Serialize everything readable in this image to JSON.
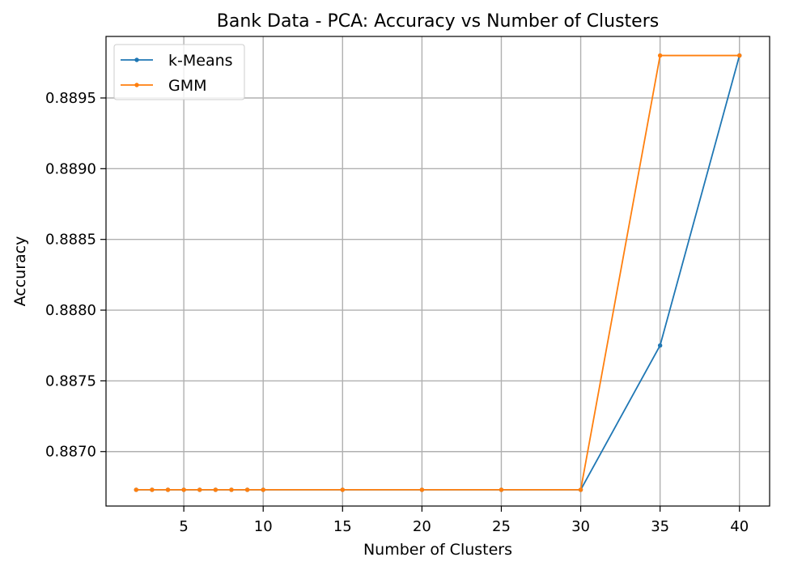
{
  "chart_data": {
    "type": "line",
    "title": "Bank Data - PCA: Accuracy vs Number of Clusters",
    "xlabel": "Number of Clusters",
    "ylabel": "Accuracy",
    "xlim": [
      0.1,
      41.9
    ],
    "ylim": [
      0.886615,
      0.889935
    ],
    "xticks": [
      5,
      10,
      15,
      20,
      25,
      30,
      35,
      40
    ],
    "xtick_labels": [
      "5",
      "10",
      "15",
      "20",
      "25",
      "30",
      "35",
      "40"
    ],
    "yticks": [
      0.887,
      0.8875,
      0.888,
      0.8885,
      0.889,
      0.8895
    ],
    "ytick_labels": [
      "0.8870",
      "0.8875",
      "0.8880",
      "0.8885",
      "0.8890",
      "0.8895"
    ],
    "grid": true,
    "legend_position": "top-left",
    "series": [
      {
        "name": "k-Means",
        "color": "#1f77b4",
        "x": [
          2,
          3,
          4,
          5,
          6,
          7,
          8,
          9,
          10,
          15,
          20,
          25,
          30,
          35,
          40
        ],
        "y": [
          0.88673,
          0.88673,
          0.88673,
          0.88673,
          0.88673,
          0.88673,
          0.88673,
          0.88673,
          0.88673,
          0.88673,
          0.88673,
          0.88673,
          0.88673,
          0.88775,
          0.8898
        ]
      },
      {
        "name": "GMM",
        "color": "#ff7f0e",
        "x": [
          2,
          3,
          4,
          5,
          6,
          7,
          8,
          9,
          10,
          15,
          20,
          25,
          30,
          35,
          40
        ],
        "y": [
          0.88673,
          0.88673,
          0.88673,
          0.88673,
          0.88673,
          0.88673,
          0.88673,
          0.88673,
          0.88673,
          0.88673,
          0.88673,
          0.88673,
          0.88673,
          0.8898,
          0.8898
        ]
      }
    ]
  }
}
